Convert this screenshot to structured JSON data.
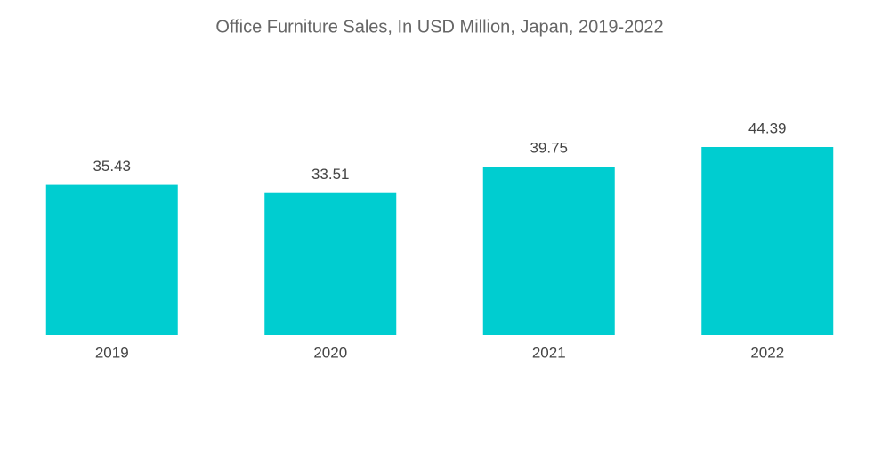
{
  "chart_data": {
    "type": "bar",
    "title": "Office Furniture Sales, In USD Million, Japan, 2019-2022",
    "categories": [
      "2019",
      "2020",
      "2021",
      "2022"
    ],
    "values": [
      35.43,
      33.51,
      39.75,
      44.39
    ],
    "color": "#00cdd0"
  }
}
